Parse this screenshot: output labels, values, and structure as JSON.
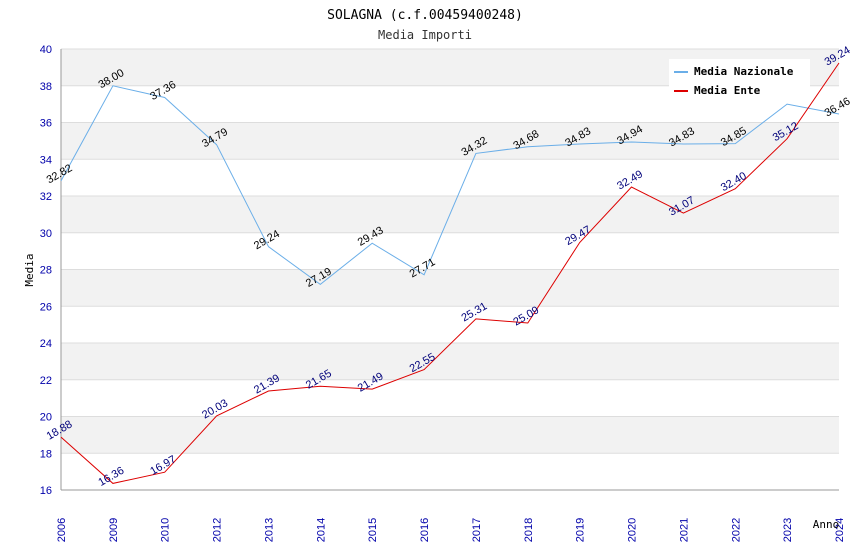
{
  "chart_data": {
    "type": "line",
    "title": "SOLAGNA (c.f.00459400248)",
    "subtitle": "Media Importi",
    "xlabel": "Anno",
    "ylabel": "Media",
    "ylim": [
      16,
      40
    ],
    "yticks": [
      16,
      18,
      20,
      22,
      24,
      26,
      28,
      30,
      32,
      34,
      36,
      38,
      40
    ],
    "categories": [
      "2006",
      "2009",
      "2010",
      "2012",
      "2013",
      "2014",
      "2015",
      "2016",
      "2017",
      "2018",
      "2019",
      "2020",
      "2021",
      "2022",
      "2023",
      "2024"
    ],
    "grid": true,
    "legend_position": "top-right",
    "series": [
      {
        "name": "Media Nazionale",
        "color": "#6aaee8",
        "label_color": "#000000",
        "values": [
          32.82,
          38.0,
          37.36,
          34.79,
          29.24,
          27.19,
          29.43,
          27.71,
          34.32,
          34.68,
          34.83,
          34.94,
          34.83,
          34.85,
          37.0,
          36.46
        ],
        "labels": [
          "32.82",
          "38.00",
          "37.36",
          "34.79",
          "29.24",
          "27.19",
          "29.43",
          "27.71",
          "34.32",
          "34.68",
          "34.83",
          "34.94",
          "34.83",
          "34.85",
          "",
          "36.46"
        ]
      },
      {
        "name": "Media Ente",
        "color": "#dd0000",
        "label_color": "#00007a",
        "values": [
          18.88,
          16.36,
          16.97,
          20.03,
          21.39,
          21.65,
          21.49,
          22.55,
          25.31,
          25.09,
          29.47,
          32.49,
          31.07,
          32.4,
          35.12,
          39.24
        ],
        "labels": [
          "18.88",
          "16.36",
          "16.97",
          "20.03",
          "21.39",
          "21.65",
          "21.49",
          "22.55",
          "25.31",
          "25.09",
          "29.47",
          "32.49",
          "31.07",
          "32.40",
          "35.12",
          "39.24"
        ]
      }
    ]
  }
}
